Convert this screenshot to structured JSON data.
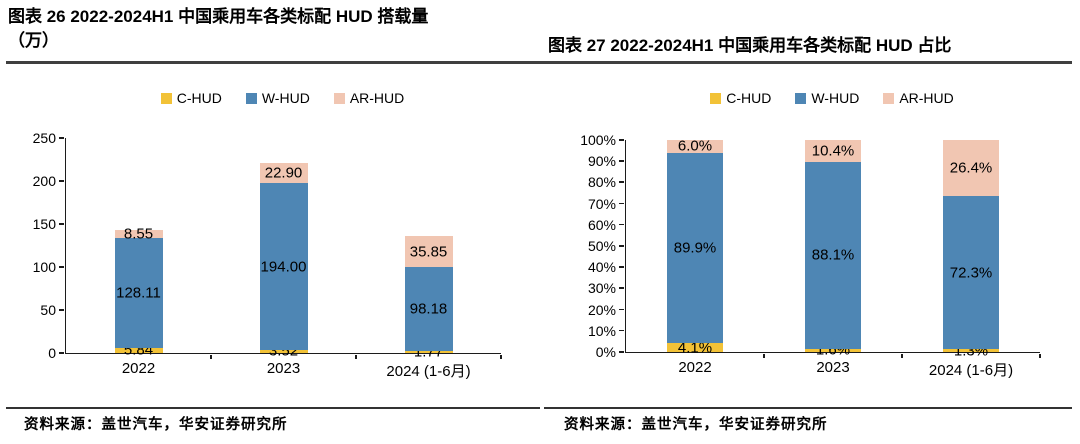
{
  "figures": [
    {
      "title_line1": "图表 26 2022-2024H1 中国乘用车各类标配 HUD 搭载量",
      "title_line2": "（万）",
      "source": "资料来源：盖世汽车，华安证券研究所"
    },
    {
      "title_line1": "图表 27 2022-2024H1 中国乘用车各类标配 HUD 占比",
      "source": "资料来源：盖世汽车，华安证券研究所"
    }
  ],
  "chart_data": [
    {
      "type": "bar",
      "stacked": true,
      "title": "图表 26 2022-2024H1 中国乘用车各类标配 HUD 搭载量（万）",
      "xlabel": "",
      "ylabel": "万",
      "categories": [
        "2022",
        "2023",
        "2024 (1-6月)"
      ],
      "series": [
        {
          "name": "C-HUD",
          "color": "#F2C237",
          "values": [
            5.84,
            3.52,
            1.77
          ],
          "labels": [
            "5.84",
            "3.52",
            "1.77"
          ]
        },
        {
          "name": "W-HUD",
          "color": "#4E86B4",
          "values": [
            128.11,
            194.0,
            98.18
          ],
          "labels": [
            "128.11",
            "194.00",
            "98.18"
          ]
        },
        {
          "name": "AR-HUD",
          "color": "#F1C6B2",
          "values": [
            8.55,
            22.9,
            35.85
          ],
          "labels": [
            "8.55",
            "22.90",
            "35.85"
          ]
        }
      ],
      "ylim": [
        0,
        250
      ],
      "ytick_labels": [
        "0",
        "50",
        "100",
        "150",
        "200",
        "250"
      ],
      "legend_position": "top",
      "grid": false
    },
    {
      "type": "bar",
      "stacked": true,
      "unit": "percent",
      "title": "图表 27 2022-2024H1 中国乘用车各类标配 HUD 占比",
      "xlabel": "",
      "ylabel": "",
      "categories": [
        "2022",
        "2023",
        "2024 (1-6月)"
      ],
      "series": [
        {
          "name": "C-HUD",
          "color": "#F2C237",
          "values": [
            4.1,
            1.6,
            1.3
          ],
          "labels": [
            "4.1%",
            "1.6%",
            "1.3%"
          ]
        },
        {
          "name": "W-HUD",
          "color": "#4E86B4",
          "values": [
            89.9,
            88.1,
            72.3
          ],
          "labels": [
            "89.9%",
            "88.1%",
            "72.3%"
          ]
        },
        {
          "name": "AR-HUD",
          "color": "#F1C6B2",
          "values": [
            6.0,
            10.4,
            26.4
          ],
          "labels": [
            "6.0%",
            "10.4%",
            "26.4%"
          ]
        }
      ],
      "ylim": [
        0,
        100
      ],
      "ytick_labels": [
        "0%",
        "10%",
        "20%",
        "30%",
        "40%",
        "50%",
        "60%",
        "70%",
        "80%",
        "90%",
        "100%"
      ],
      "legend_position": "top",
      "grid": false
    }
  ]
}
